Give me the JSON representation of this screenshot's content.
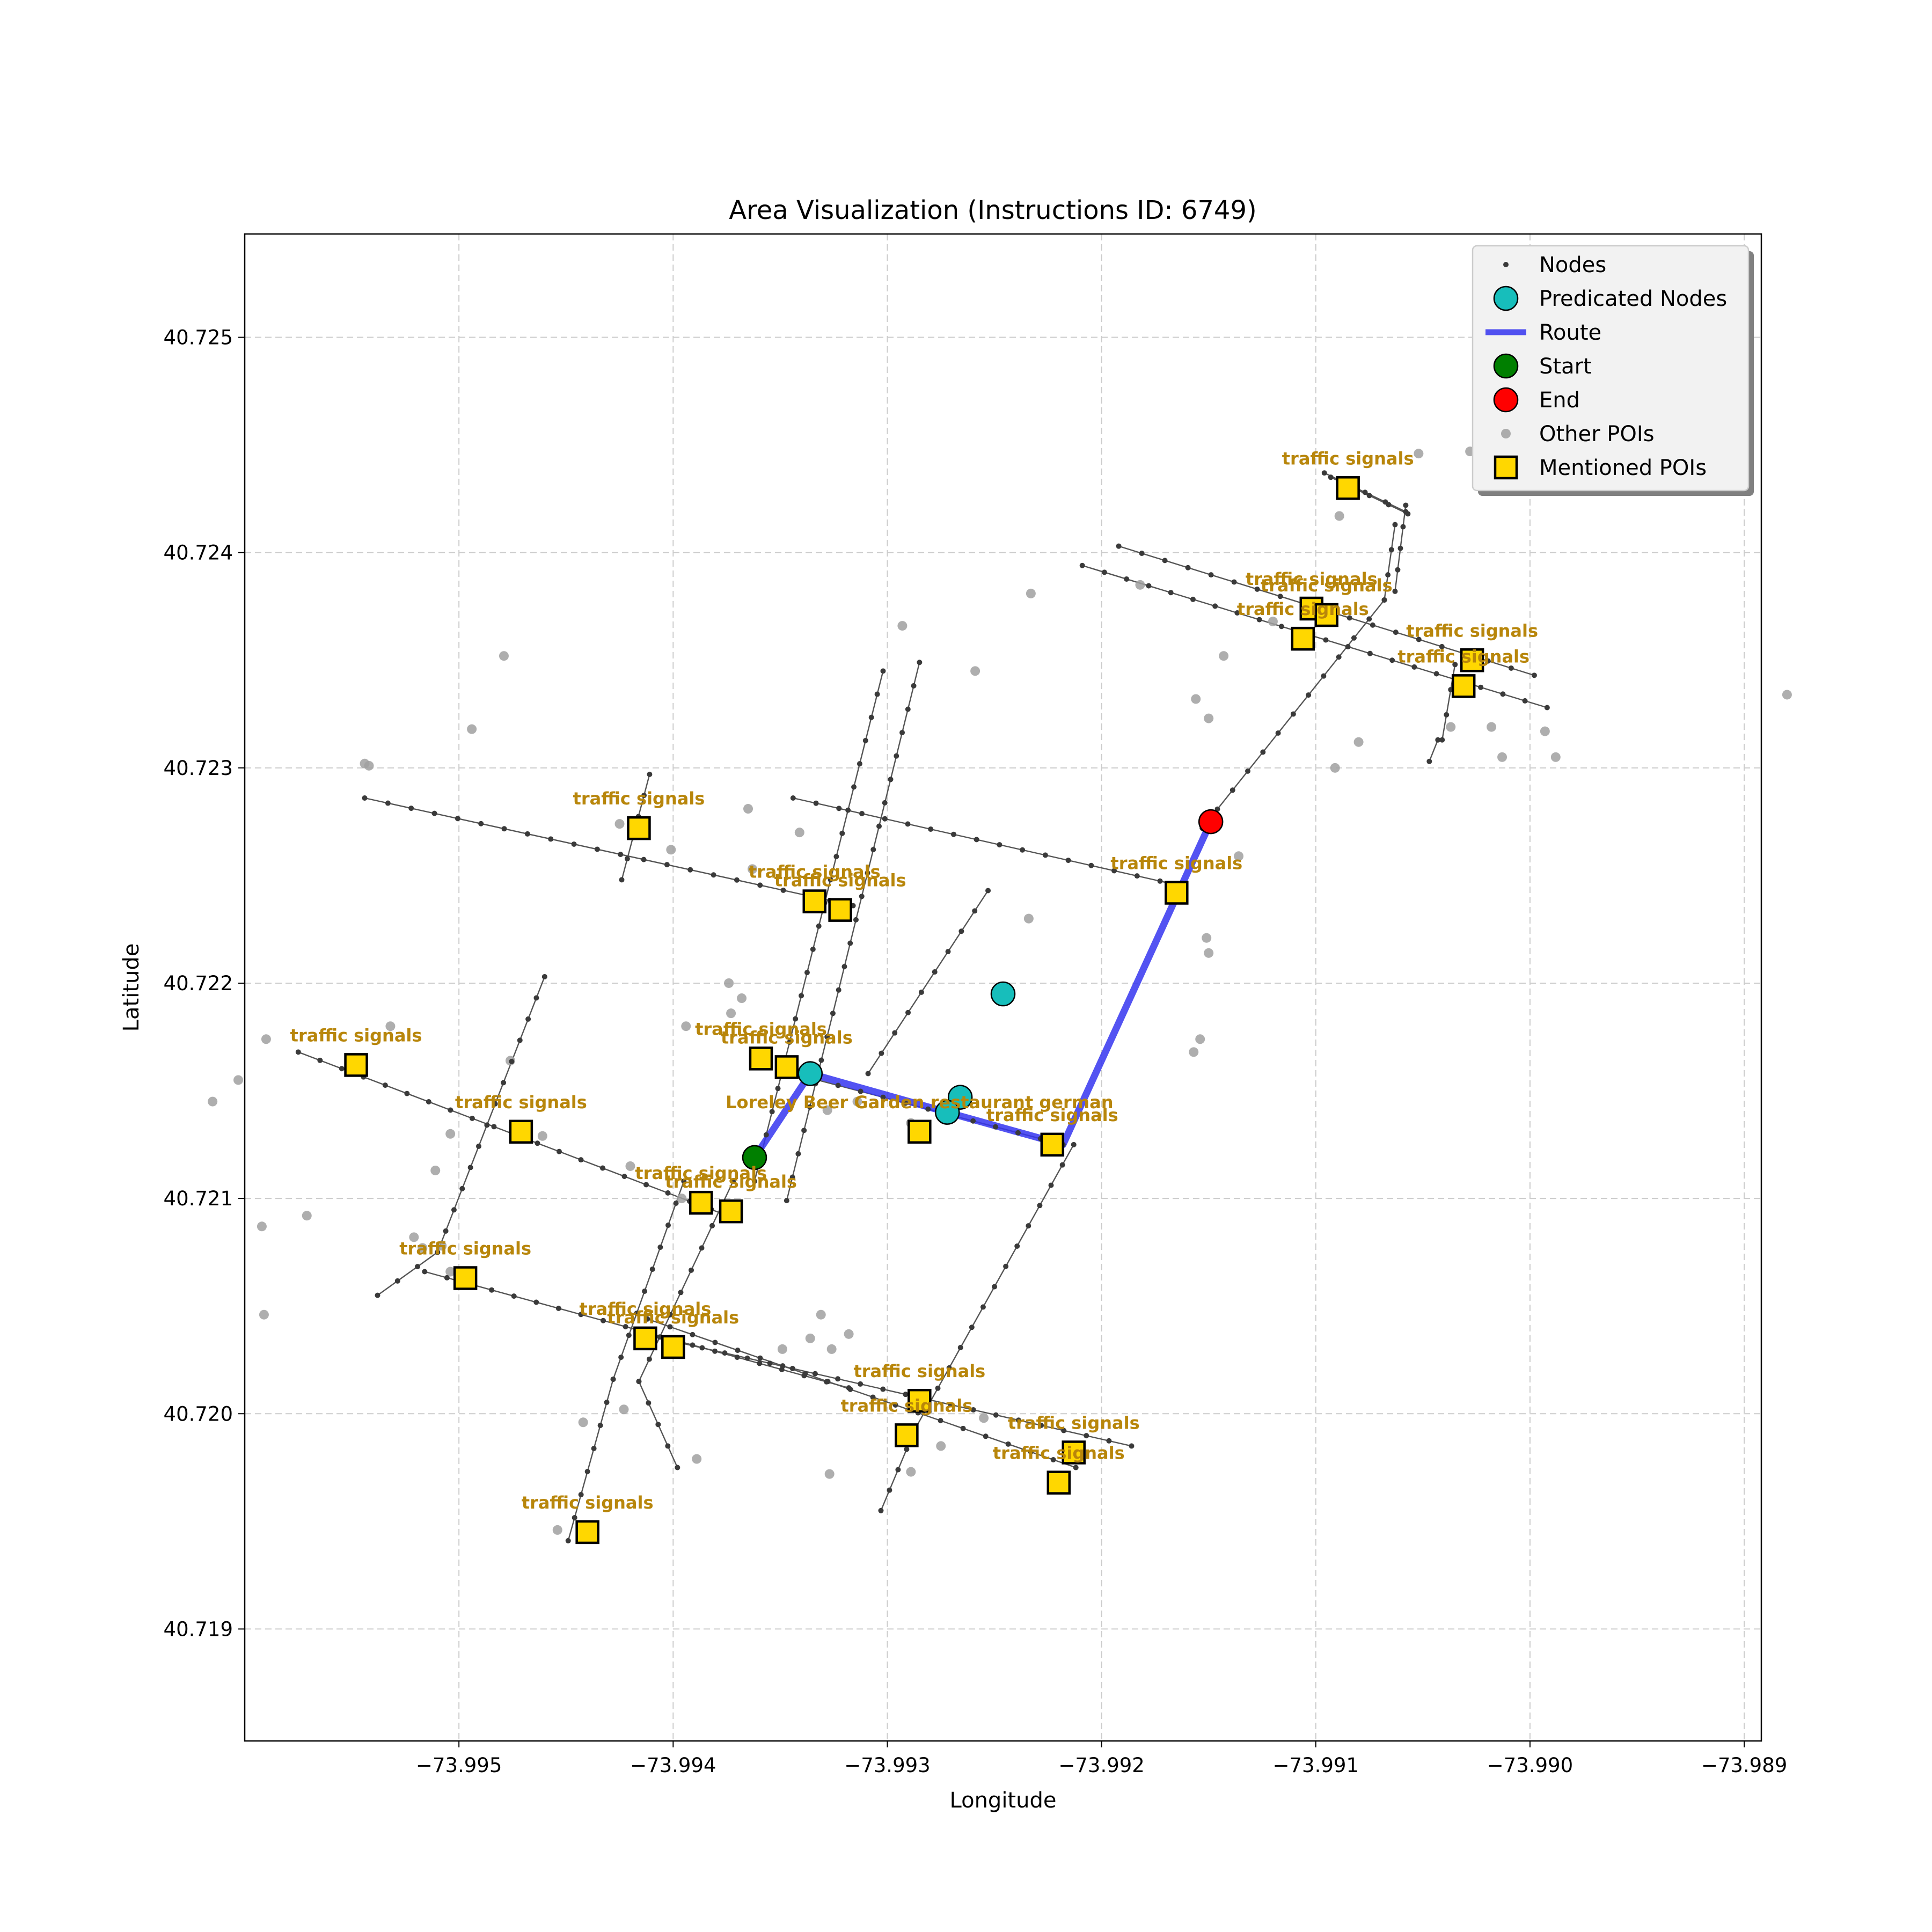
{
  "chart_data": {
    "type": "scatter",
    "title": "Area Visualization (Instructions ID: 6749)",
    "xlabel": "Longitude",
    "ylabel": "Latitude",
    "xlim": [
      -73.996,
      -73.98892
    ],
    "ylim": [
      40.71848,
      40.72548
    ],
    "xticks": [
      -73.995,
      -73.994,
      -73.993,
      -73.992,
      -73.991,
      -73.99,
      -73.989
    ],
    "xtick_labels": [
      "−73.995",
      "−73.994",
      "−73.993",
      "−73.992",
      "−73.991",
      "−73.990",
      "−73.989"
    ],
    "yticks": [
      40.719,
      40.72,
      40.721,
      40.722,
      40.723,
      40.724,
      40.725
    ],
    "ytick_labels": [
      "40.719",
      "40.720",
      "40.721",
      "40.722",
      "40.723",
      "40.724",
      "40.725"
    ],
    "grid": true,
    "legend_position": "top-right",
    "legend": [
      {
        "key": "nodes",
        "label": "Nodes"
      },
      {
        "key": "predicated",
        "label": "Predicated Nodes"
      },
      {
        "key": "route",
        "label": "Route"
      },
      {
        "key": "start",
        "label": "Start"
      },
      {
        "key": "end",
        "label": "End"
      },
      {
        "key": "other",
        "label": "Other POIs"
      },
      {
        "key": "mentioned",
        "label": "Mentioned POIs"
      }
    ],
    "colors": {
      "node": "#3a3a3a",
      "street": "#555555",
      "predicated": "#17bebb",
      "route": "#3535f0",
      "start": "#007f00",
      "end": "#ff0000",
      "other": "#a0a0a0",
      "mentioned": "#ffd700",
      "poi_label": "#b8860b",
      "grid": "#cccccc"
    },
    "streets": [
      [
        [
          -73.99344,
          40.72286
        ],
        [
          -73.99162,
          40.72245
        ]
      ],
      [
        [
          -73.99544,
          40.72286
        ],
        [
          -73.99316,
          40.72236
        ]
      ],
      [
        [
          -73.99575,
          40.72168
        ],
        [
          -73.99372,
          40.72091
        ]
      ],
      [
        [
          -73.99516,
          40.72066
        ],
        [
          -73.99318,
          40.72012
        ]
      ],
      [
        [
          -73.99412,
          40.72044
        ],
        [
          -73.99212,
          40.71975
        ]
      ],
      [
        [
          -73.99397,
          40.72033
        ],
        [
          -73.99186,
          40.71985
        ]
      ],
      [
        [
          -73.99344,
          40.72158
        ],
        [
          -73.99218,
          40.72125
        ]
      ],
      [
        [
          -73.99192,
          40.72403
        ],
        [
          -73.98998,
          40.72343
        ]
      ],
      [
        [
          -73.99209,
          40.72394
        ],
        [
          -73.98992,
          40.72328
        ]
      ],
      [
        [
          -73.99096,
          40.72437
        ],
        [
          -73.99058,
          40.72419
        ]
      ],
      [
        [
          -73.99093,
          40.72435
        ],
        [
          -73.99057,
          40.72418
        ]
      ],
      [
        [
          -73.99411,
          40.72297
        ],
        [
          -73.99424,
          40.72248
        ]
      ],
      [
        [
          -73.99302,
          40.72345
        ],
        [
          -73.99362,
          40.72108
        ]
      ],
      [
        [
          -73.99285,
          40.72349
        ],
        [
          -73.99347,
          40.72099
        ]
      ],
      [
        [
          -73.9946,
          40.72203
        ],
        [
          -73.9951,
          40.72075
        ]
      ],
      [
        [
          -73.9951,
          40.72075
        ],
        [
          -73.99538,
          40.72055
        ]
      ],
      [
        [
          -73.99395,
          40.72108
        ],
        [
          -73.99428,
          40.72016
        ]
      ],
      [
        [
          -73.99428,
          40.72016
        ],
        [
          -73.99449,
          40.71941
        ]
      ],
      [
        [
          -73.99372,
          40.72108
        ],
        [
          -73.99416,
          40.72015
        ]
      ],
      [
        [
          -73.99416,
          40.72015
        ],
        [
          -73.99398,
          40.71975
        ]
      ],
      [
        [
          -73.99253,
          40.72243
        ],
        [
          -73.99309,
          40.72158
        ]
      ],
      [
        [
          -73.99213,
          40.72125
        ],
        [
          -73.99287,
          40.71993
        ]
      ],
      [
        [
          -73.99287,
          40.71993
        ],
        [
          -73.99303,
          40.71955
        ]
      ],
      [
        [
          -73.99153,
          40.72272
        ],
        [
          -73.99068,
          40.72378
        ]
      ],
      [
        [
          -73.99068,
          40.72378
        ],
        [
          -73.99063,
          40.72413
        ]
      ],
      [
        [
          -73.99058,
          40.72422
        ],
        [
          -73.99063,
          40.72382
        ]
      ],
      [
        [
          -73.99035,
          40.72348
        ],
        [
          -73.99041,
          40.72313
        ]
      ],
      [
        [
          -73.99043,
          40.72313
        ],
        [
          -73.99047,
          40.72303
        ]
      ]
    ],
    "route": [
      [
        -73.99362,
        40.72119
      ],
      [
        -73.99336,
        40.72158
      ],
      [
        -73.99272,
        40.7214
      ],
      [
        -73.99218,
        40.72125
      ],
      [
        -73.99149,
        40.72275
      ]
    ],
    "start": [
      -73.99362,
      40.72119
    ],
    "end": [
      -73.99149,
      40.72275
    ],
    "predicated_nodes": [
      [
        -73.99336,
        40.72158
      ],
      [
        -73.99246,
        40.72195
      ],
      [
        -73.99266,
        40.72147
      ],
      [
        -73.99272,
        40.7214
      ]
    ],
    "other_pois": [
      [
        -73.99544,
        40.72302
      ],
      [
        -73.99542,
        40.72301
      ],
      [
        -73.99365,
        40.72281
      ],
      [
        -73.99293,
        40.72366
      ],
      [
        -73.99259,
        40.72345
      ],
      [
        -73.99233,
        40.72381
      ],
      [
        -73.99156,
        40.72332
      ],
      [
        -73.99143,
        40.72352
      ],
      [
        -73.9912,
        40.72368
      ],
      [
        -73.99105,
        40.72374
      ],
      [
        -73.9915,
        40.72323
      ],
      [
        -73.99091,
        40.723
      ],
      [
        -73.9908,
        40.72312
      ],
      [
        -73.99052,
        40.72446
      ],
      [
        -73.99028,
        40.72447
      ],
      [
        -73.98989,
        40.72432
      ],
      [
        -73.99089,
        40.72417
      ],
      [
        -73.99182,
        40.72385
      ],
      [
        -73.99013,
        40.72305
      ],
      [
        -73.98988,
        40.72305
      ],
      [
        -73.99037,
        40.72319
      ],
      [
        -73.99018,
        40.72319
      ],
      [
        -73.98993,
        40.72317
      ],
      [
        -73.9888,
        40.72334
      ],
      [
        -73.99136,
        40.72259
      ],
      [
        -73.99151,
        40.72221
      ],
      [
        -73.9915,
        40.72214
      ],
      [
        -73.99154,
        40.72174
      ],
      [
        -73.99157,
        40.72168
      ],
      [
        -73.99234,
        40.7223
      ],
      [
        -73.99328,
        40.72141
      ],
      [
        -73.99289,
        40.72135
      ],
      [
        -73.99314,
        40.72145
      ],
      [
        -73.99374,
        40.722
      ],
      [
        -73.99368,
        40.72193
      ],
      [
        -73.99373,
        40.72186
      ],
      [
        -73.99394,
        40.7218
      ],
      [
        -73.99363,
        40.72253
      ],
      [
        -73.99341,
        40.7227
      ],
      [
        -73.99401,
        40.72262
      ],
      [
        -73.99425,
        40.72274
      ],
      [
        -73.99494,
        40.72318
      ],
      [
        -73.99479,
        40.72352
      ],
      [
        -73.9959,
        40.72174
      ],
      [
        -73.99603,
        40.72155
      ],
      [
        -73.99615,
        40.72145
      ],
      [
        -73.99504,
        40.7213
      ],
      [
        -73.99511,
        40.72113
      ],
      [
        -73.99592,
        40.72087
      ],
      [
        -73.99517,
        40.72077
      ],
      [
        -73.99504,
        40.72066
      ],
      [
        -73.99521,
        40.72082
      ],
      [
        -73.99571,
        40.72092
      ],
      [
        -73.99461,
        40.72129
      ],
      [
        -73.99476,
        40.72164
      ],
      [
        -73.99532,
        40.7218
      ],
      [
        -73.99508,
        40.72078
      ],
      [
        -73.99591,
        40.72046
      ],
      [
        -73.9942,
        40.72115
      ],
      [
        -73.99396,
        40.721
      ],
      [
        -73.99349,
        40.7203
      ],
      [
        -73.99336,
        40.72035
      ],
      [
        -73.99326,
        40.7203
      ],
      [
        -73.99318,
        40.72037
      ],
      [
        -73.99331,
        40.72046
      ],
      [
        -73.99275,
        40.71985
      ],
      [
        -73.99289,
        40.71973
      ],
      [
        -73.99255,
        40.71998
      ],
      [
        -73.99327,
        40.71972
      ],
      [
        -73.99389,
        40.71979
      ],
      [
        -73.99454,
        40.71946
      ],
      [
        -73.99423,
        40.72002
      ],
      [
        -73.99442,
        40.71996
      ]
    ],
    "mentioned_pois": [
      {
        "x": -73.99085,
        "y": 40.7243,
        "label": "traffic signals"
      },
      {
        "x": -73.99102,
        "y": 40.72374,
        "label": "traffic signals"
      },
      {
        "x": -73.99095,
        "y": 40.72371,
        "label": "traffic signals"
      },
      {
        "x": -73.99106,
        "y": 40.7236,
        "label": "traffic signals"
      },
      {
        "x": -73.99027,
        "y": 40.7235,
        "label": "traffic signals"
      },
      {
        "x": -73.99031,
        "y": 40.72338,
        "label": "traffic signals"
      },
      {
        "x": -73.99416,
        "y": 40.72272,
        "label": "traffic signals"
      },
      {
        "x": -73.99334,
        "y": 40.72238,
        "label": "traffic signals"
      },
      {
        "x": -73.99322,
        "y": 40.72234,
        "label": "traffic signals"
      },
      {
        "x": -73.99165,
        "y": 40.72242,
        "label": "traffic signals"
      },
      {
        "x": -73.99548,
        "y": 40.72162,
        "label": "traffic signals"
      },
      {
        "x": -73.99359,
        "y": 40.72165,
        "label": "traffic signals"
      },
      {
        "x": -73.99347,
        "y": 40.72161,
        "label": "traffic signals"
      },
      {
        "x": -73.99471,
        "y": 40.72131,
        "label": "traffic signals"
      },
      {
        "x": -73.99285,
        "y": 40.72131,
        "label": "Loreley Beer Garden restaurant german"
      },
      {
        "x": -73.99223,
        "y": 40.72125,
        "label": "traffic signals"
      },
      {
        "x": -73.99387,
        "y": 40.72098,
        "label": "traffic signals"
      },
      {
        "x": -73.99373,
        "y": 40.72094,
        "label": "traffic signals"
      },
      {
        "x": -73.99497,
        "y": 40.72063,
        "label": "traffic signals"
      },
      {
        "x": -73.99413,
        "y": 40.72035,
        "label": "traffic signals"
      },
      {
        "x": -73.994,
        "y": 40.72031,
        "label": "traffic signals"
      },
      {
        "x": -73.99285,
        "y": 40.72006,
        "label": "traffic signals"
      },
      {
        "x": -73.99291,
        "y": 40.7199,
        "label": "traffic signals"
      },
      {
        "x": -73.99213,
        "y": 40.71982,
        "label": "traffic signals"
      },
      {
        "x": -73.9922,
        "y": 40.71968,
        "label": "traffic signals"
      },
      {
        "x": -73.9944,
        "y": 40.71945,
        "label": "traffic signals"
      }
    ]
  }
}
